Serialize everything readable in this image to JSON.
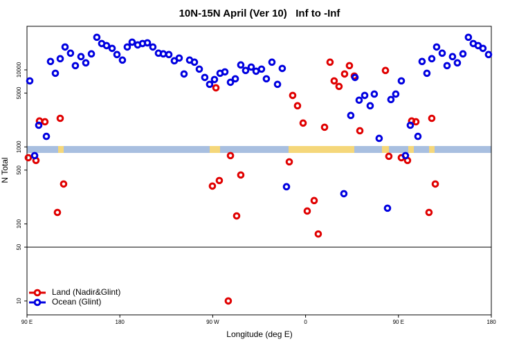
{
  "chart_data": {
    "type": "scatter",
    "title": "10N-15N April (Ver 10)   Inf to -Inf",
    "xlabel": "Longitude (deg E)",
    "ylabel": "N Total",
    "xlim": [
      90,
      540
    ],
    "xticks": [
      {
        "value": 90,
        "label": "90 E"
      },
      180,
      {
        "value": 270,
        "label": "90 W"
      },
      {
        "value": 360,
        "label": "0"
      },
      {
        "value": 450,
        "label": "90 E"
      },
      {
        "value": 540,
        "label": "180"
      }
    ],
    "ylim": [
      6.6,
      36800
    ],
    "log_y": true,
    "yticks": [
      10,
      50,
      100,
      500,
      1000,
      5000,
      10000
    ],
    "hline": 50,
    "legend": "lower left",
    "series": [
      {
        "name": "Land (Nadir&Glint)",
        "color": "#e00000",
        "x": [
          91.3,
          98.7,
          102.1,
          107.4,
          119.5,
          122.2,
          125.5,
          269.7,
          273.1,
          276.4,
          285.1,
          287.2,
          293.2,
          297.2,
          344.2,
          347.5,
          352.2,
          357.6,
          361.6,
          368.3,
          372.3,
          378.4,
          383.7,
          387.7,
          392.4,
          397.8,
          402.5,
          407.2,
          412.6,
          437.4,
          440.7,
          452.8,
          458.8,
          462.8,
          466.9,
          479.6,
          482.3,
          485.7
        ],
        "values": [
          724,
          667,
          2170,
          2120,
          141,
          2350,
          330,
          310,
          5850,
          366,
          10,
          771,
          127,
          432,
          640,
          4660,
          3420,
          2040,
          147,
          201,
          74,
          1800,
          12590,
          7200,
          6100,
          8850,
          11350,
          8320,
          1620,
          9820,
          755,
          724,
          667,
          2170,
          2120,
          141,
          2350,
          330
        ]
      },
      {
        "name": "Ocean (Glint)",
        "color": "#0000e0",
        "x": [
          92.7,
          97.4,
          101.4,
          108.8,
          112.8,
          117.5,
          122.2,
          126.9,
          132.2,
          136.9,
          142.3,
          147.0,
          152.4,
          157.7,
          162.4,
          167.1,
          172.5,
          177.2,
          182.5,
          187.2,
          191.9,
          197.3,
          202.0,
          206.7,
          212.0,
          217.4,
          222.1,
          227.5,
          232.8,
          237.5,
          242.2,
          247.6,
          252.3,
          257.0,
          262.3,
          267.0,
          271.7,
          277.1,
          281.8,
          287.2,
          291.9,
          297.2,
          301.9,
          307.3,
          312.0,
          317.3,
          322.0,
          327.4,
          332.8,
          337.4,
          341.5,
          397.1,
          403.8,
          407.9,
          411.9,
          417.3,
          422.6,
          426.6,
          431.3,
          439.4,
          442.7,
          447.4,
          452.8,
          456.8,
          461.5,
          468.9,
          472.9,
          477.6,
          482.3,
          487.0,
          492.4,
          497.1,
          502.4,
          507.1,
          512.5,
          517.8,
          522.5,
          527.2,
          531.9,
          537.3
        ],
        "values": [
          7200,
          771,
          1910,
          1370,
          12850,
          9040,
          13960,
          19830,
          16480,
          11350,
          14860,
          12330,
          16140,
          26500,
          21990,
          20650,
          19020,
          15810,
          13400,
          19830,
          22900,
          21100,
          21990,
          22440,
          19830,
          16480,
          16140,
          15810,
          13120,
          14250,
          8850,
          13400,
          12590,
          10230,
          7980,
          6490,
          7500,
          9040,
          9420,
          6900,
          7660,
          11590,
          9820,
          10890,
          9610,
          10230,
          7660,
          12590,
          6490,
          10440,
          304,
          247,
          2560,
          7980,
          4040,
          4660,
          3420,
          4850,
          1290,
          160,
          4120,
          4850,
          7200,
          771,
          1910,
          1370,
          12850,
          9040,
          13960,
          19830,
          16480,
          11350,
          14860,
          12330,
          16140,
          26500,
          21990,
          20650,
          19020,
          15810
        ]
      }
    ]
  }
}
